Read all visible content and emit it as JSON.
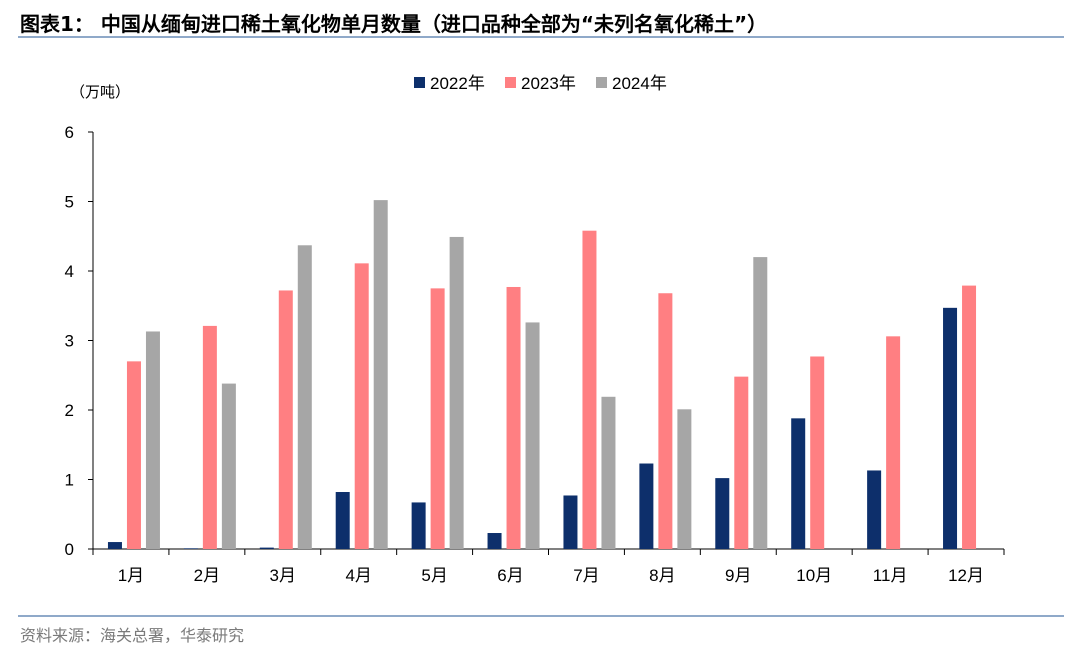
{
  "header": {
    "title": "图表1： 中国从缅甸进口稀土氧化物单月数量（进口品种全部为“未列名氧化稀土”）"
  },
  "footer": {
    "source": "资料来源：海关总署，华泰研究"
  },
  "chart_data": {
    "type": "bar",
    "unit_label": "（万吨）",
    "categories": [
      "1月",
      "2月",
      "3月",
      "4月",
      "5月",
      "6月",
      "7月",
      "8月",
      "9月",
      "10月",
      "11月",
      "12月"
    ],
    "series": [
      {
        "name": "2022年",
        "color": "#0d2f6b",
        "values": [
          0.1,
          0.01,
          0.02,
          0.82,
          0.67,
          0.23,
          0.77,
          1.23,
          1.02,
          1.88,
          1.13,
          3.47
        ]
      },
      {
        "name": "2023年",
        "color": "#ff7f82",
        "values": [
          2.7,
          3.21,
          3.72,
          4.11,
          3.75,
          3.77,
          4.58,
          3.68,
          2.48,
          2.77,
          3.06,
          3.79
        ]
      },
      {
        "name": "2024年",
        "color": "#a6a6a6",
        "values": [
          3.13,
          2.38,
          4.37,
          5.02,
          4.49,
          3.26,
          2.19,
          2.01,
          4.2,
          null,
          null,
          null
        ]
      }
    ],
    "yticks": [
      0,
      1,
      2,
      3,
      4,
      5,
      6
    ],
    "ylim": [
      0,
      6
    ],
    "grid": false,
    "legend_position": "top-center"
  }
}
